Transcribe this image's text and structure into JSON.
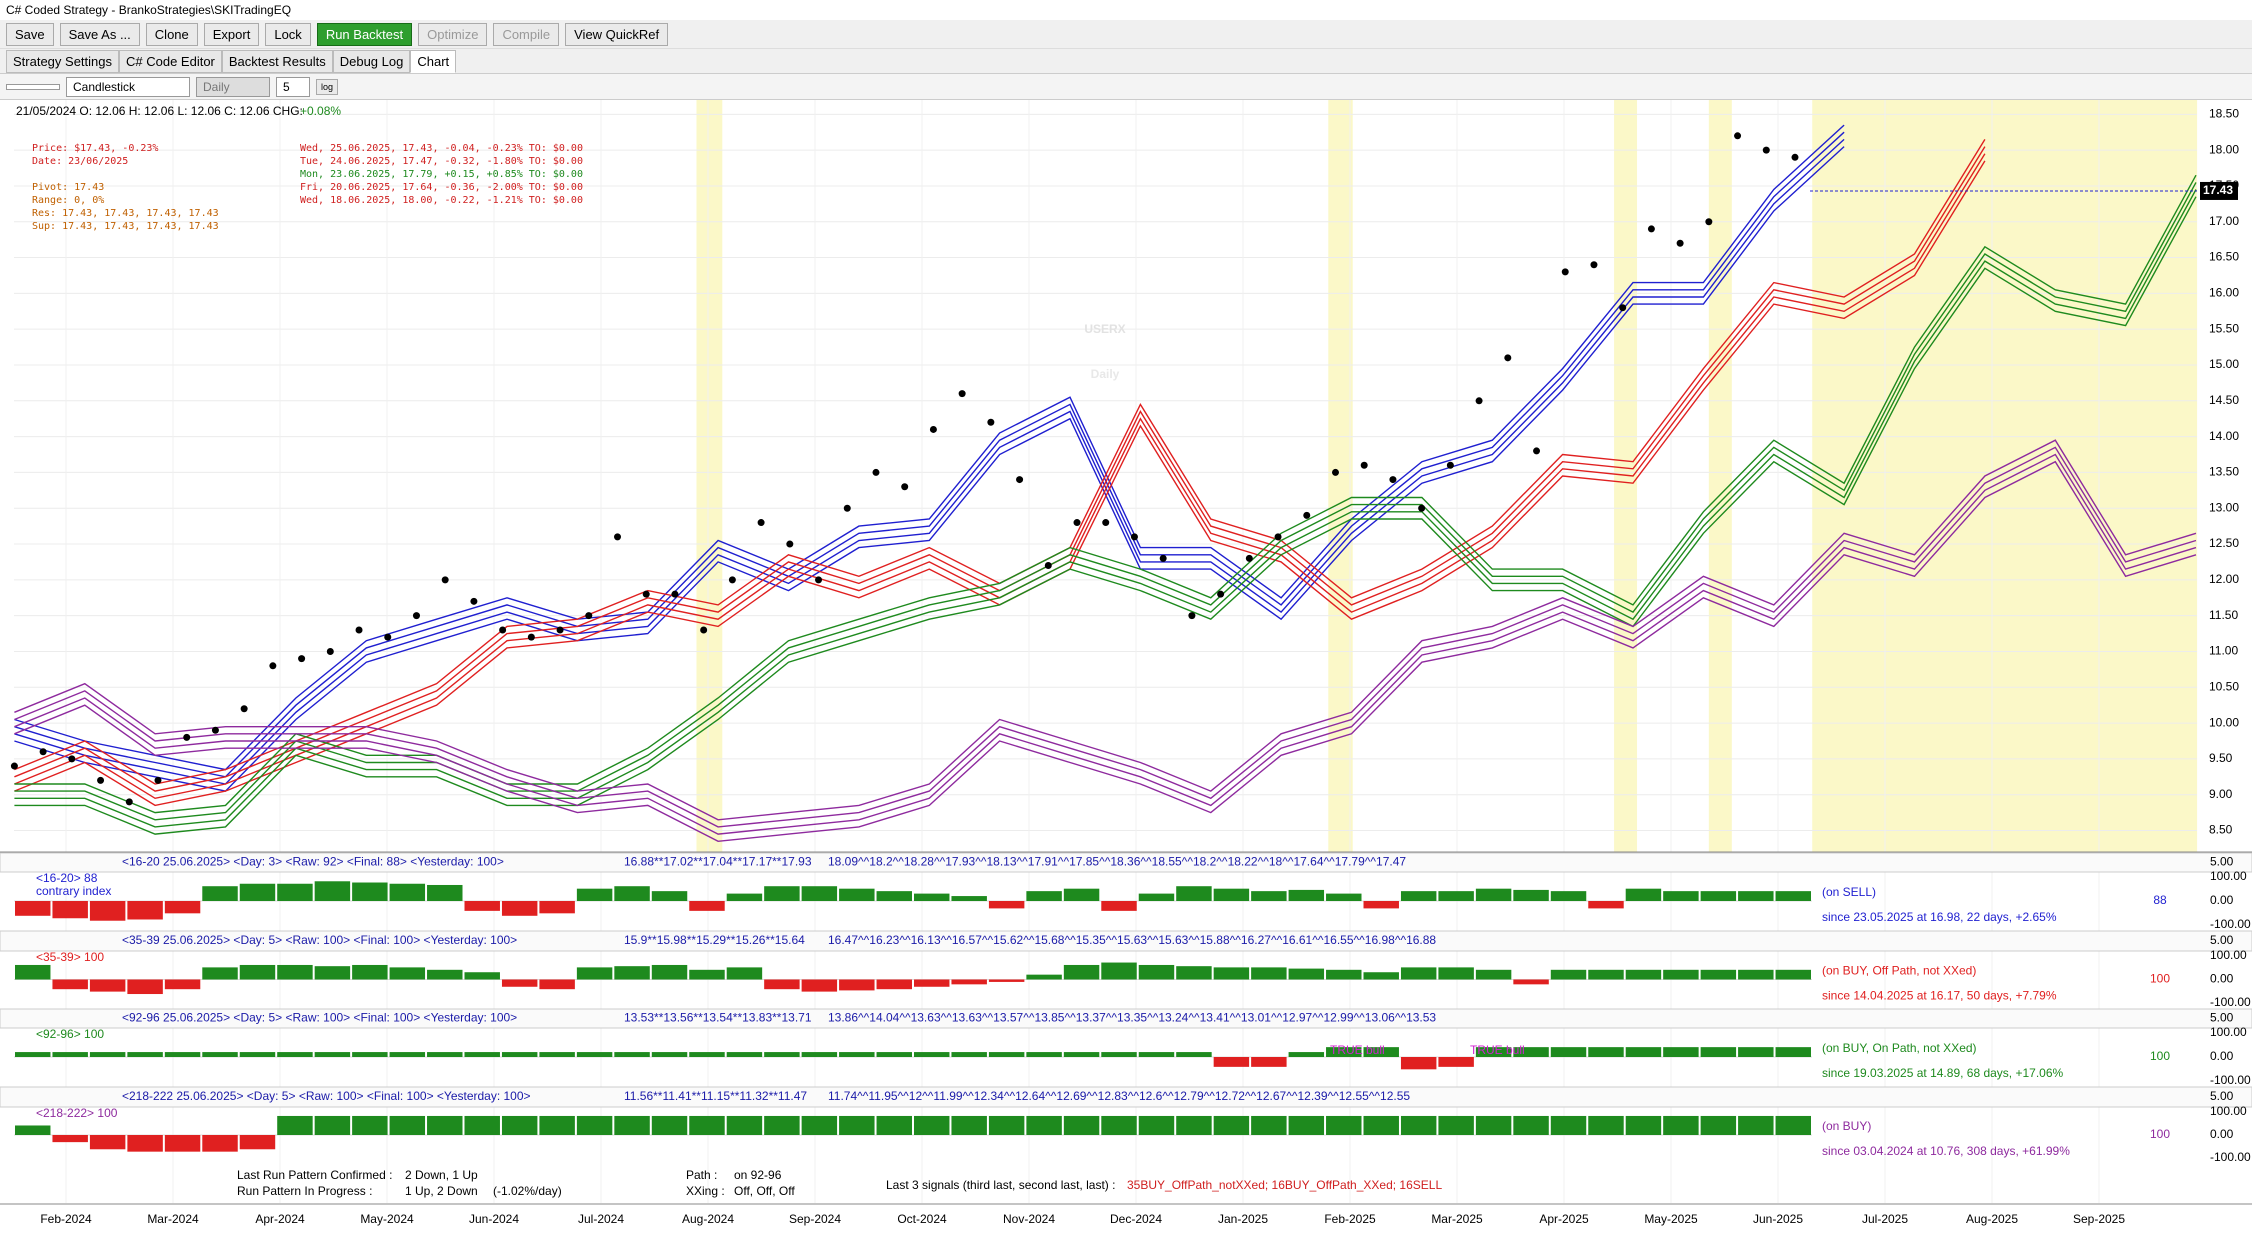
{
  "window": {
    "title": "C# Coded Strategy - BrankoStrategies\\SKITradingEQ"
  },
  "toolbar": [
    "Save",
    "Save As ...",
    "Clone",
    "Export",
    "Lock",
    "Run Backtest",
    "Optimize",
    "Compile",
    "View QuickRef"
  ],
  "tabs": [
    "Strategy Settings",
    "C# Code Editor",
    "Backtest Results",
    "Debug Log",
    "Chart"
  ],
  "chart_toolbar": {
    "chart_type": "Candlestick",
    "period": "Daily",
    "count": "5",
    "scale": "log"
  },
  "chart": {
    "type": "line",
    "ohlc": "21/05/2024 O: 12.06 H: 12.06 L: 12.06 C: 12.06 CHG:",
    "chg": "+0.08%",
    "info_left": [
      "Price: $17.43, -0.23%",
      "Date: 23/06/2025",
      "Pivot: 17.43",
      "Range: 0, 0%",
      "Res: 17.43, 17.43, 17.43, 17.43",
      "Sup: 17.43, 17.43, 17.43, 17.43"
    ],
    "info_right": [
      "Wed, 25.06.2025, 17.43, -0.04, -0.23%  TO: $0.00",
      "Tue, 24.06.2025, 17.47, -0.32, -1.80%  TO: $0.00",
      "Mon, 23.06.2025, 17.79, +0.15, +0.85%  TO: $0.00",
      "Fri, 20.06.2025, 17.64, -0.36, -2.00%  TO: $0.00",
      "Wed, 18.06.2025, 18.00, -0.22, -1.21%  TO: $0.00"
    ],
    "watermark": [
      "USERX",
      "Daily"
    ],
    "last_price": {
      "value": 17.43,
      "label": "17.43"
    },
    "ylim": [
      8.2,
      18.7
    ],
    "yticks": [
      {
        "value": 8.5,
        "label": "8.50"
      },
      {
        "value": 9,
        "label": "9.00"
      },
      {
        "value": 9.5,
        "label": "9.50"
      },
      {
        "value": 10,
        "label": "10.00"
      },
      {
        "value": 10.5,
        "label": "10.50"
      },
      {
        "value": 11,
        "label": "11.00"
      },
      {
        "value": 11.5,
        "label": "11.50"
      },
      {
        "value": 12,
        "label": "12.00"
      },
      {
        "value": 12.5,
        "label": "12.50"
      },
      {
        "value": 13,
        "label": "13.00"
      },
      {
        "value": 13.5,
        "label": "13.50"
      },
      {
        "value": 14,
        "label": "14.00"
      },
      {
        "value": 14.5,
        "label": "14.50"
      },
      {
        "value": 15,
        "label": "15.00"
      },
      {
        "value": 15.5,
        "label": "15.50"
      },
      {
        "value": 16,
        "label": "16.00"
      },
      {
        "value": 16.5,
        "label": "16.50"
      },
      {
        "value": 17,
        "label": "17.00"
      },
      {
        "value": 17.5,
        "label": "17.50"
      },
      {
        "value": 18,
        "label": "18.00"
      },
      {
        "value": 18.5,
        "label": "18.50"
      }
    ],
    "x_labels": [
      "Feb-2024",
      "Mar-2024",
      "Apr-2024",
      "May-2024",
      "Jun-2024",
      "Jul-2024",
      "Aug-2024",
      "Sep-2024",
      "Oct-2024",
      "Nov-2024",
      "Dec-2024",
      "Jan-2025",
      "Feb-2025",
      "Mar-2025",
      "Apr-2025",
      "May-2025",
      "Jun-2025",
      "Jul-2025",
      "Aug-2025",
      "Sep-2025"
    ],
    "price": {
      "color": "#000000",
      "values": [
        9.4,
        9.6,
        9.5,
        9.2,
        8.9,
        9.2,
        9.8,
        9.9,
        10.2,
        10.8,
        10.9,
        11.0,
        11.3,
        11.2,
        11.5,
        12.0,
        11.7,
        11.3,
        11.2,
        11.3,
        11.5,
        12.6,
        11.8,
        11.8,
        11.3,
        12.0,
        12.8,
        12.5,
        12.0,
        13.0,
        13.5,
        13.3,
        14.1,
        14.6,
        14.2,
        13.4,
        12.2,
        12.8,
        12.8,
        12.6,
        12.3,
        11.5,
        11.8,
        12.3,
        12.6,
        12.9,
        13.5,
        13.6,
        13.4,
        13.0,
        13.6,
        14.5,
        15.1,
        13.8,
        16.3,
        16.4,
        15.8,
        16.9,
        16.7,
        17.0,
        18.2,
        18.0,
        17.9
      ]
    },
    "bands": [
      {
        "color": "#1f1fd0",
        "values": [
          9.9,
          9.6,
          9.4,
          9.2,
          10.2,
          11.0,
          11.3,
          11.6,
          11.3,
          11.4,
          12.4,
          12.0,
          12.6,
          12.7,
          13.9,
          14.4,
          12.3,
          12.3,
          11.6,
          12.7,
          13.5,
          13.8,
          14.8,
          16.0,
          16.0,
          17.3,
          18.2,
          null,
          null,
          null,
          null,
          null
        ]
      },
      {
        "color": "#e02020",
        "values": [
          9.2,
          9.6,
          9.0,
          9.2,
          9.6,
          10.0,
          10.4,
          11.2,
          11.3,
          11.7,
          11.5,
          12.2,
          11.9,
          12.3,
          11.8,
          12.3,
          14.3,
          12.7,
          12.4,
          11.6,
          12.0,
          12.6,
          13.6,
          13.5,
          14.8,
          16.0,
          15.8,
          16.4,
          18.0,
          null,
          null,
          null
        ]
      },
      {
        "color": "#1e8a1e",
        "values": [
          9.0,
          9.0,
          8.6,
          8.7,
          9.7,
          9.4,
          9.4,
          9.0,
          9.0,
          9.5,
          10.2,
          11.0,
          11.3,
          11.6,
          11.8,
          12.3,
          12.0,
          11.6,
          12.5,
          13.0,
          13.0,
          12.0,
          12.0,
          11.5,
          12.8,
          13.8,
          13.2,
          15.1,
          16.5,
          15.9,
          15.7,
          17.5
        ]
      },
      {
        "color": "#8e2a9e",
        "values": [
          10.0,
          10.4,
          9.7,
          9.8,
          9.8,
          9.8,
          9.6,
          9.2,
          8.9,
          9.0,
          8.5,
          8.6,
          8.7,
          9.0,
          9.9,
          9.6,
          9.3,
          8.9,
          9.7,
          10.0,
          11.0,
          11.2,
          11.6,
          11.2,
          11.9,
          11.5,
          12.5,
          12.2,
          13.3,
          13.8,
          12.2,
          12.5
        ]
      }
    ]
  },
  "panel_axis": [
    "5.00",
    "100.00",
    "0.00",
    "-100.00"
  ],
  "bar_colors": {
    "up": "#1e8a1e",
    "down": "#e02020"
  },
  "panels": [
    {
      "header": "<16-20  25.06.2025>   <Day: 3>   <Raw: 92>   <Final: 88>   <Yesterday: 100>",
      "mid": "16.88**17.02**17.04**17.17**17.93",
      "right": "18.09^^18.2^^18.28^^17.93^^18.13^^17.91^^17.85^^18.36^^18.55^^18.2^^18.22^^18^^17.64^^17.79^^17.47",
      "label": "<16-20>  88",
      "sub": "contrary index",
      "status": "(on SELL)",
      "since": "since 23.05.2025 at 16.98, 22 days, +2.65%",
      "score": "88",
      "score_color": "#1f1fd0",
      "values": [
        -60,
        -70,
        -80,
        -75,
        -50,
        60,
        70,
        70,
        80,
        75,
        70,
        65,
        -40,
        -60,
        -50,
        50,
        60,
        40,
        -40,
        30,
        60,
        60,
        50,
        40,
        30,
        20,
        -30,
        40,
        50,
        -40,
        30,
        60,
        50,
        40,
        45,
        30,
        -30,
        40,
        40,
        50,
        45,
        40,
        -30,
        50,
        40,
        40,
        40,
        40
      ]
    },
    {
      "header": "<35-39  25.06.2025>   <Day: 5>   <Raw: 100>   <Final: 100>   <Yesterday: 100>",
      "mid": "15.9**15.98**15.29**15.26**15.64",
      "right": "16.47^^16.23^^16.13^^16.57^^15.62^^15.68^^15.35^^15.63^^15.63^^15.88^^16.27^^16.61^^16.55^^16.98^^16.88",
      "label": "<35-39>  100",
      "status": "(on BUY, Off Path, not XXed)",
      "since": "since 14.04.2025 at 16.17, 50 days, +7.79%",
      "score": "100",
      "score_color": "#e02020",
      "values": [
        60,
        -40,
        -50,
        -60,
        -40,
        50,
        60,
        60,
        55,
        60,
        50,
        40,
        30,
        -30,
        -40,
        50,
        55,
        60,
        40,
        50,
        -40,
        -50,
        -45,
        -40,
        -30,
        -20,
        -10,
        20,
        60,
        70,
        60,
        55,
        50,
        50,
        45,
        40,
        30,
        50,
        50,
        40,
        -20,
        40,
        40,
        40,
        40,
        40,
        40,
        40
      ]
    },
    {
      "header": "<92-96  25.06.2025>   <Day: 5>   <Raw: 100>   <Final: 100>   <Yesterday: 100>",
      "mid": "13.53**13.56**13.54**13.83**13.71",
      "right": "13.86^^14.04^^13.63^^13.63^^13.57^^13.85^^13.37^^13.35^^13.24^^13.41^^13.01^^12.97^^12.99^^13.06^^13.53",
      "label": "<92-96>  100",
      "status": "(on BUY, On Path, not XXed)",
      "since": "since 19.03.2025 at 14.89, 68 days, +17.06%",
      "score": "100",
      "score_color": "#1e8a1e",
      "notes": [
        "TRUE bull",
        "TRUE bull"
      ],
      "values": [
        20,
        20,
        20,
        20,
        20,
        20,
        20,
        20,
        20,
        20,
        20,
        20,
        20,
        20,
        20,
        20,
        20,
        20,
        20,
        20,
        20,
        20,
        20,
        20,
        20,
        20,
        20,
        20,
        20,
        20,
        20,
        20,
        -40,
        -40,
        20,
        40,
        40,
        -50,
        -40,
        40,
        40,
        40,
        40,
        40,
        40,
        40,
        40,
        40
      ]
    },
    {
      "header": "<218-222  25.06.2025>   <Day: 5>   <Raw: 100>   <Final: 100>   <Yesterday: 100>",
      "mid": "11.56**11.41**11.15**11.32**11.47",
      "right": "11.74^^11.95^^12^^11.99^^12.34^^12.64^^12.69^^12.83^^12.6^^12.79^^12.72^^12.67^^12.39^^12.55^^12.55",
      "label": "<218-222>  100",
      "status": "(on BUY)",
      "since": "since 03.04.2024 at 10.76, 308 days, +61.99%",
      "score": "100",
      "score_color": "#8e2a9e",
      "values": [
        40,
        -30,
        -60,
        -70,
        -70,
        -70,
        -60,
        80,
        80,
        80,
        80,
        80,
        80,
        80,
        80,
        80,
        80,
        80,
        80,
        80,
        80,
        80,
        80,
        80,
        80,
        80,
        80,
        80,
        80,
        80,
        80,
        80,
        80,
        80,
        80,
        80,
        80,
        80,
        80,
        80,
        80,
        80,
        80,
        80,
        80,
        80,
        80,
        80
      ]
    }
  ],
  "summary": {
    "confirmed_label": "Last Run Pattern Confirmed :",
    "confirmed": "2 Down, 1 Up",
    "progress_label": "Run Pattern In Progress     :",
    "progress": "1 Up, 2 Down",
    "rate": "(-1.02%/day)",
    "path_label": "Path       :",
    "path": "on 92-96",
    "xxing_label": "XXing :",
    "xxing": "Off, Off, Off",
    "signals_label": "Last 3 signals (third last, second last, last) :",
    "signals": "35BUY_OffPath_notXXed;  16BUY_OffPath_XXed;  16SELL"
  }
}
